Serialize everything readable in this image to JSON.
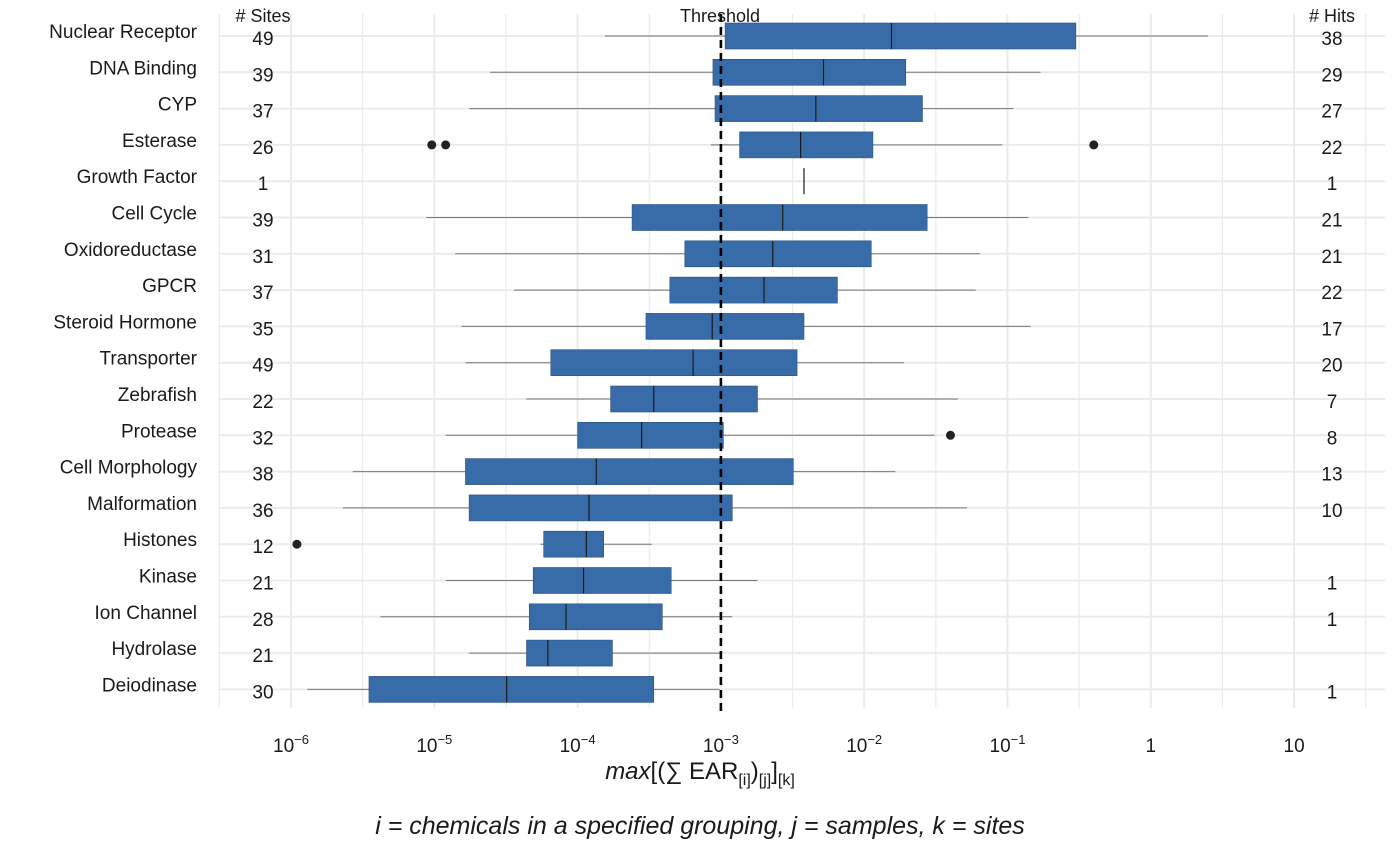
{
  "chart_data": {
    "type": "boxplot",
    "orientation": "horizontal",
    "x_scale": "log10",
    "x_lim": [
      1e-06,
      10
    ],
    "x_ticks": [
      1e-06,
      1e-05,
      0.0001,
      0.001,
      0.01,
      0.1,
      1,
      10
    ],
    "x_tick_labels": [
      {
        "base": "10",
        "exp": "−6"
      },
      {
        "base": "10",
        "exp": "−5"
      },
      {
        "base": "10",
        "exp": "−4"
      },
      {
        "base": "10",
        "exp": "−3"
      },
      {
        "base": "10",
        "exp": "−2"
      },
      {
        "base": "10",
        "exp": "−1"
      },
      {
        "base": "1",
        "exp": ""
      },
      {
        "base": "10",
        "exp": ""
      }
    ],
    "threshold": 0.001,
    "threshold_label": "Threshold",
    "sites_header": "# Sites",
    "hits_header": "# Hits",
    "x_title": {
      "prefix": "max",
      "body_open": "[(∑ EAR",
      "sub1": "[i]",
      "mid": ")",
      "sub2": "[j]",
      "close": "]",
      "sub3": "[k]"
    },
    "caption": "i = chemicals in a specified grouping, j = samples, k = sites",
    "box_color": "#386ca9",
    "grid": true,
    "categories": [
      {
        "name": "Nuclear Receptor",
        "sites": "49",
        "hits": "38",
        "whisker_low": 0.000155,
        "q1": 0.00107,
        "median": 0.0155,
        "q3": 0.3,
        "whisker_high": 2.5,
        "outliers": []
      },
      {
        "name": "DNA Binding",
        "sites": "39",
        "hits": "29",
        "whisker_low": 2.45e-05,
        "q1": 0.00088,
        "median": 0.0052,
        "q3": 0.0195,
        "whisker_high": 0.17,
        "outliers": []
      },
      {
        "name": "CYP",
        "sites": "37",
        "hits": "27",
        "whisker_low": 1.75e-05,
        "q1": 0.00091,
        "median": 0.0046,
        "q3": 0.0255,
        "whisker_high": 0.11,
        "outliers": []
      },
      {
        "name": "Esterase",
        "sites": "26",
        "hits": "22",
        "whisker_low": 0.00085,
        "q1": 0.00135,
        "median": 0.0036,
        "q3": 0.0115,
        "whisker_high": 0.092,
        "outliers": [
          9.6e-06,
          1.2e-05,
          0.4
        ]
      },
      {
        "name": "Growth Factor",
        "sites": "1",
        "hits": "1",
        "whisker_low": 0.0038,
        "q1": 0.0038,
        "median": 0.0038,
        "q3": 0.0038,
        "whisker_high": 0.0038,
        "outliers": []
      },
      {
        "name": "Cell Cycle",
        "sites": "39",
        "hits": "21",
        "whisker_low": 8.8e-06,
        "q1": 0.00024,
        "median": 0.0027,
        "q3": 0.0275,
        "whisker_high": 0.14,
        "outliers": []
      },
      {
        "name": "Oxidoreductase",
        "sites": "31",
        "hits": "21",
        "whisker_low": 1.4e-05,
        "q1": 0.00056,
        "median": 0.0023,
        "q3": 0.0112,
        "whisker_high": 0.064,
        "outliers": []
      },
      {
        "name": "GPCR",
        "sites": "37",
        "hits": "22",
        "whisker_low": 3.6e-05,
        "q1": 0.00044,
        "median": 0.002,
        "q3": 0.0065,
        "whisker_high": 0.06,
        "outliers": []
      },
      {
        "name": "Steroid Hormone",
        "sites": "35",
        "hits": "17",
        "whisker_low": 1.55e-05,
        "q1": 0.0003,
        "median": 0.00087,
        "q3": 0.0038,
        "whisker_high": 0.145,
        "outliers": []
      },
      {
        "name": "Transporter",
        "sites": "49",
        "hits": "20",
        "whisker_low": 1.65e-05,
        "q1": 6.5e-05,
        "median": 0.00064,
        "q3": 0.0034,
        "whisker_high": 0.019,
        "outliers": []
      },
      {
        "name": "Zebrafish",
        "sites": "22",
        "hits": "7",
        "whisker_low": 4.4e-05,
        "q1": 0.00017,
        "median": 0.00034,
        "q3": 0.0018,
        "whisker_high": 0.045,
        "outliers": []
      },
      {
        "name": "Protease",
        "sites": "32",
        "hits": "8",
        "whisker_low": 1.2e-05,
        "q1": 0.0001,
        "median": 0.00028,
        "q3": 0.00104,
        "whisker_high": 0.031,
        "outliers": [
          0.04
        ]
      },
      {
        "name": "Cell Morphology",
        "sites": "38",
        "hits": "13",
        "whisker_low": 2.7e-06,
        "q1": 1.65e-05,
        "median": 0.000135,
        "q3": 0.0032,
        "whisker_high": 0.0165,
        "outliers": []
      },
      {
        "name": "Malformation",
        "sites": "36",
        "hits": "10",
        "whisker_low": 2.3e-06,
        "q1": 1.75e-05,
        "median": 0.00012,
        "q3": 0.0012,
        "whisker_high": 0.052,
        "outliers": []
      },
      {
        "name": "Histones",
        "sites": "12",
        "hits": "",
        "whisker_low": 5.5e-05,
        "q1": 5.8e-05,
        "median": 0.000115,
        "q3": 0.000152,
        "whisker_high": 0.00033,
        "outliers": [
          1.1e-06
        ]
      },
      {
        "name": "Kinase",
        "sites": "21",
        "hits": "1",
        "whisker_low": 1.2e-05,
        "q1": 4.9e-05,
        "median": 0.00011,
        "q3": 0.00045,
        "whisker_high": 0.0018,
        "outliers": []
      },
      {
        "name": "Ion Channel",
        "sites": "28",
        "hits": "1",
        "whisker_low": 4.2e-06,
        "q1": 4.6e-05,
        "median": 8.3e-05,
        "q3": 0.00039,
        "whisker_high": 0.0012,
        "outliers": []
      },
      {
        "name": "Hydrolase",
        "sites": "21",
        "hits": "",
        "whisker_low": 1.75e-05,
        "q1": 4.4e-05,
        "median": 6.2e-05,
        "q3": 0.000175,
        "whisker_high": 0.00098,
        "outliers": []
      },
      {
        "name": "Deiodinase",
        "sites": "30",
        "hits": "1",
        "whisker_low": 1.3e-06,
        "q1": 3.5e-06,
        "median": 3.2e-05,
        "q3": 0.00034,
        "whisker_high": 0.00098,
        "outliers": []
      }
    ]
  }
}
